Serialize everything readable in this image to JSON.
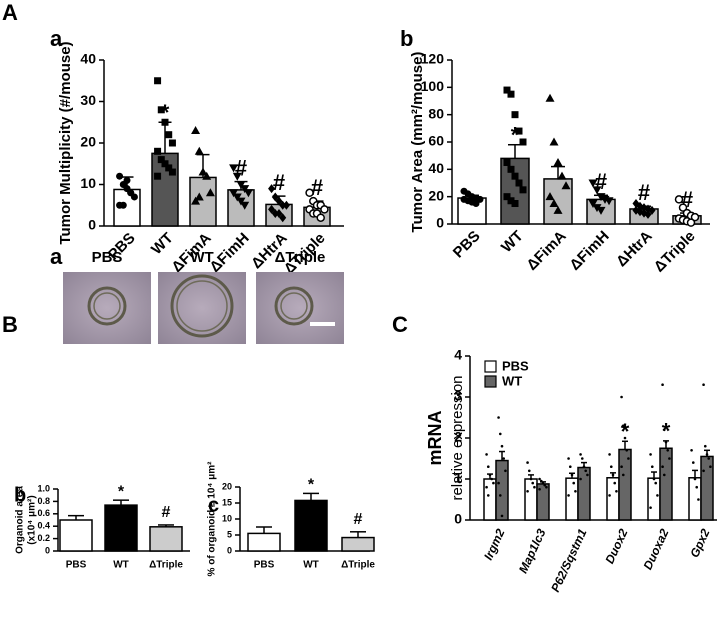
{
  "section_labels": [
    "A",
    "B",
    "C"
  ],
  "chart_data": [
    {
      "type": "bar",
      "panel": "a",
      "ylabel": "Tumor Multiplicity (#/mouse)",
      "categories": [
        "PBS",
        "WT",
        "ΔFimA",
        "ΔFimH",
        "ΔHtrA",
        "ΔTriple"
      ],
      "values": [
        8.8,
        17.5,
        11.7,
        8.7,
        5.2,
        4.5
      ],
      "errors": [
        3,
        7.5,
        5.5,
        2,
        2,
        1.5
      ],
      "markers": [
        null,
        "*",
        null,
        "#",
        "#",
        "#"
      ],
      "colors": [
        "#ffffff",
        "#555555",
        "#bbbbbb",
        "#bbbbbb",
        "#bbbbbb",
        "#bbbbbb"
      ],
      "point_markers": [
        "circle",
        "square",
        "triangle",
        "triangle-down",
        "diamond",
        "circle-open"
      ],
      "points": [
        [
          12,
          10,
          9,
          8,
          7,
          5,
          5,
          11,
          8
        ],
        [
          35,
          28,
          25,
          22,
          20,
          18,
          16,
          15,
          14,
          13,
          12
        ],
        [
          23,
          18,
          13,
          12,
          8,
          6,
          7
        ],
        [
          14,
          12,
          10,
          9,
          8,
          8,
          7,
          6,
          5
        ],
        [
          9,
          7,
          6,
          5,
          5,
          4,
          3,
          3,
          2
        ],
        [
          8,
          6,
          5,
          5,
          4,
          4,
          3,
          3,
          2
        ]
      ],
      "ylim": [
        0,
        40
      ],
      "yticks": [
        0,
        10,
        20,
        30,
        40
      ]
    },
    {
      "type": "bar",
      "panel": "b",
      "ylabel": "Tumor Area (mm²/mouse)",
      "categories": [
        "PBS",
        "WT",
        "ΔFimA",
        "ΔFimH",
        "ΔHtrA",
        "ΔTriple"
      ],
      "values": [
        19,
        48,
        33,
        18,
        11,
        6
      ],
      "errors": [
        2,
        10,
        9,
        3,
        2,
        2
      ],
      "markers": [
        null,
        "*",
        null,
        "#",
        "#",
        "#"
      ],
      "colors": [
        "#ffffff",
        "#555555",
        "#bbbbbb",
        "#bbbbbb",
        "#bbbbbb",
        "#bbbbbb"
      ],
      "point_markers": [
        "circle",
        "square",
        "triangle",
        "triangle-down",
        "diamond",
        "circle-open"
      ],
      "points": [
        [
          24,
          22,
          20,
          19,
          18,
          18,
          17,
          16,
          15
        ],
        [
          98,
          95,
          80,
          68,
          60,
          45,
          40,
          35,
          30,
          25,
          20,
          17,
          15
        ],
        [
          92,
          60,
          45,
          35,
          28,
          20,
          15,
          10
        ],
        [
          30,
          25,
          20,
          18,
          17,
          15,
          12,
          10
        ],
        [
          15,
          13,
          12,
          11,
          10,
          10,
          9,
          8,
          7
        ],
        [
          18,
          12,
          8,
          6,
          5,
          4,
          3,
          2,
          1
        ]
      ],
      "ylim": [
        0,
        120
      ],
      "yticks": [
        0,
        20,
        40,
        60,
        80,
        100,
        120
      ]
    },
    {
      "type": "image",
      "panel": "a",
      "labels": [
        "PBS",
        "WT",
        "ΔTriple"
      ]
    },
    {
      "type": "bar",
      "panel": "b",
      "ylabel": [
        "Organoid area",
        "(x10⁴ μm²)"
      ],
      "categories": [
        "PBS",
        "WT",
        "ΔTriple"
      ],
      "values": [
        0.5,
        0.74,
        0.39
      ],
      "errors": [
        0.07,
        0.08,
        0.03
      ],
      "markers": [
        null,
        "*",
        "#"
      ],
      "colors": [
        "#ffffff",
        "#000000",
        "#cccccc"
      ],
      "ylim": [
        0,
        1
      ],
      "yticks": [
        0,
        0.2,
        0.4,
        0.6,
        0.8,
        {
          "value": 1,
          "label": "1.0"
        }
      ]
    },
    {
      "type": "bar",
      "panel": "c",
      "ylabel": "% of organoid ≥ 10⁴ μm²",
      "categories": [
        "PBS",
        "WT",
        "ΔTriple"
      ],
      "values": [
        5.5,
        15.8,
        4.2
      ],
      "errors": [
        2,
        2.2,
        1.8
      ],
      "markers": [
        null,
        "*",
        "#"
      ],
      "colors": [
        "#ffffff",
        "#000000",
        "#cccccc"
      ],
      "ylim": [
        0,
        20
      ],
      "yticks": [
        0,
        5,
        10,
        15,
        20
      ]
    },
    {
      "type": "grouped_bar",
      "ylabel": [
        "mRNA",
        "relative expression"
      ],
      "categories": [
        "Irgm2",
        "Map1lc3",
        "P62/Sqstm1",
        "Duox2",
        "Duoxa2",
        "Gpx2"
      ],
      "series": [
        {
          "name": "PBS",
          "color": "#ffffff",
          "values": [
            1.0,
            1.0,
            1.02,
            1.03,
            1.02,
            1.03
          ],
          "errors": [
            0.12,
            0.1,
            0.12,
            0.12,
            0.15,
            0.18
          ],
          "markers": [
            null,
            null,
            null,
            null,
            null,
            null
          ],
          "points": [
            [
              1.6,
              1.3,
              1.1,
              1.0,
              0.9,
              0.8,
              0.6
            ],
            [
              1.4,
              1.2,
              1.0,
              0.9,
              0.8,
              0.7
            ],
            [
              1.5,
              1.3,
              1.1,
              0.9,
              0.7,
              0.6
            ],
            [
              1.6,
              1.3,
              1.1,
              0.9,
              0.7,
              0.6
            ],
            [
              1.6,
              1.3,
              1.0,
              0.9,
              0.6,
              0.3
            ],
            [
              1.7,
              1.4,
              1.0,
              0.8,
              0.5
            ]
          ]
        },
        {
          "name": "WT",
          "color": "#666666",
          "values": [
            1.45,
            0.88,
            1.28,
            1.72,
            1.75,
            1.55
          ],
          "errors": [
            0.22,
            0.05,
            0.12,
            0.2,
            0.18,
            0.15
          ],
          "markers": [
            null,
            null,
            null,
            "*",
            "*",
            null
          ],
          "points": [
            [
              2.5,
              2.1,
              1.8,
              1.5,
              1.2,
              0.9,
              0.6,
              0.1
            ],
            [
              1.0,
              0.95,
              0.9,
              0.85,
              0.8,
              0.75
            ],
            [
              1.6,
              1.5,
              1.3,
              1.2,
              1.1,
              1.0
            ],
            [
              3.0,
              2.3,
              2.0,
              1.7,
              1.5,
              1.3,
              1.1
            ],
            [
              3.3,
              2.2,
              1.9,
              1.7,
              1.5,
              1.3,
              1.1
            ],
            [
              3.3,
              1.8,
              1.6,
              1.5,
              1.3,
              1.2
            ]
          ]
        }
      ],
      "ylim": [
        0,
        4
      ],
      "yticks": [
        0,
        1,
        2,
        3,
        4
      ]
    }
  ]
}
